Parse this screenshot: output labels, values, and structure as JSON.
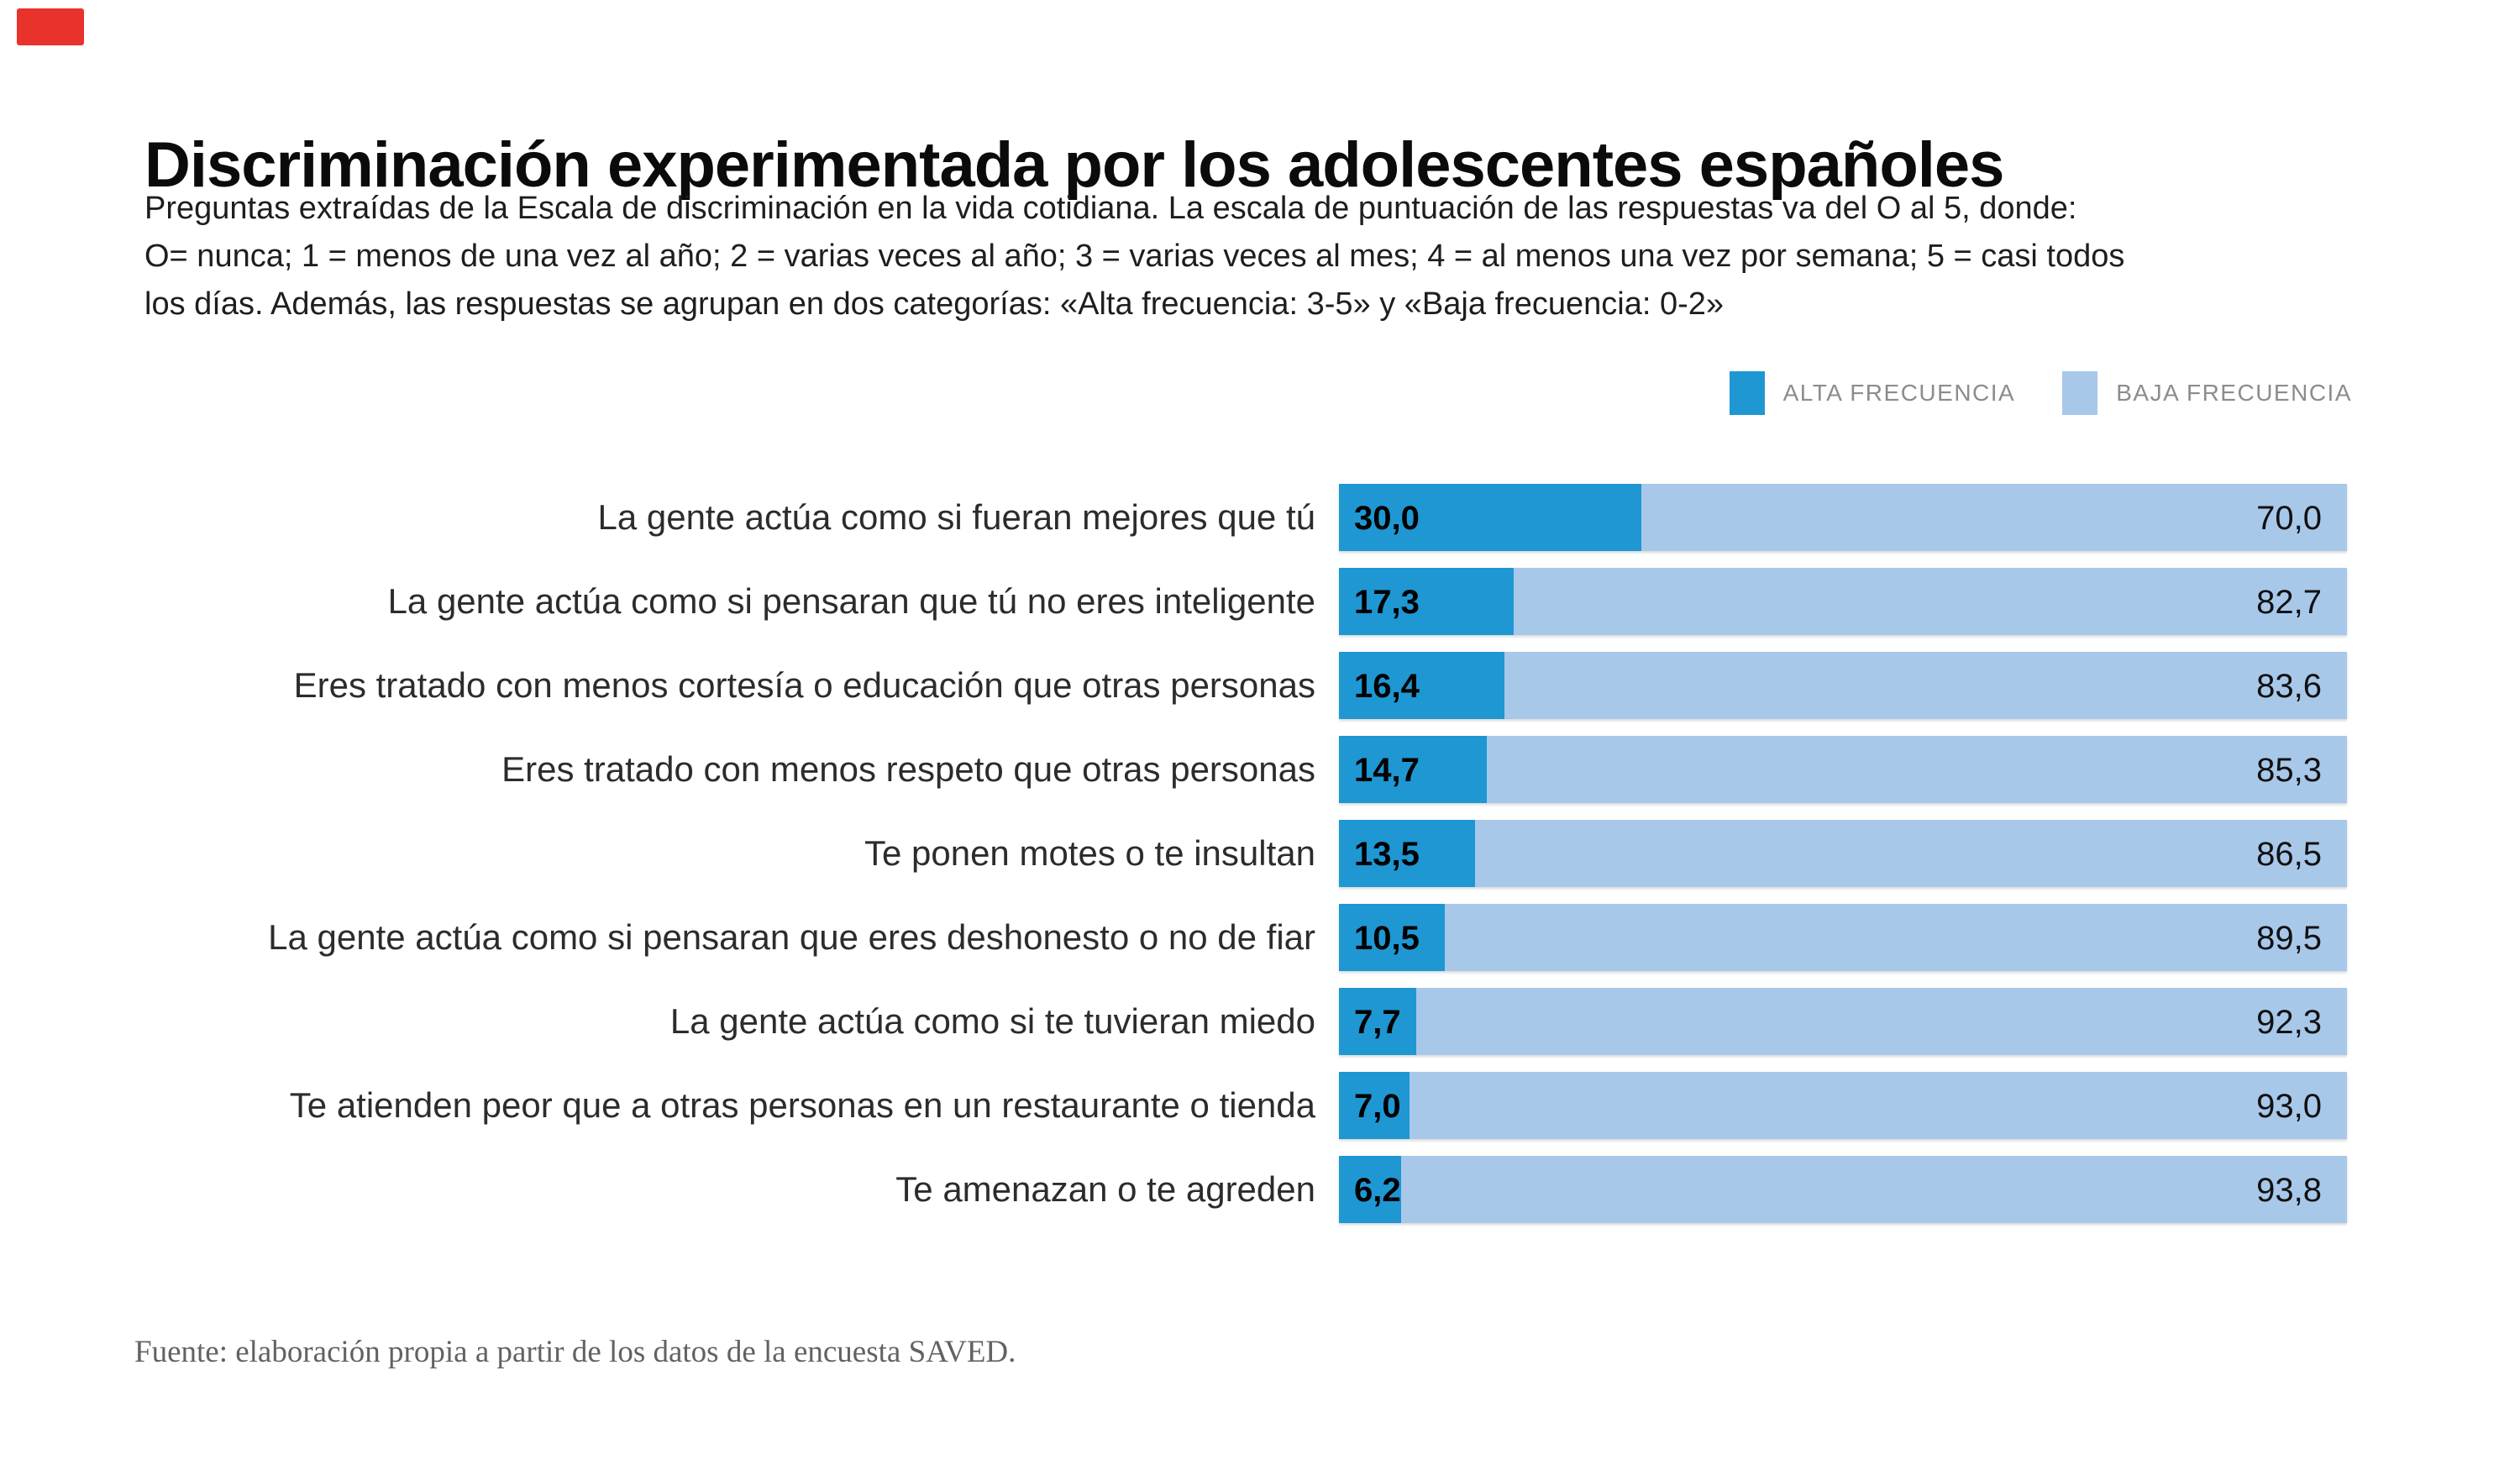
{
  "brand": {
    "logo_color": "#e8322b"
  },
  "header": {
    "title": "Discriminación experimentada por los adolescentes españoles",
    "subtitle_lines": [
      "Preguntas extraídas de la Escala de discriminación en la vida cotidiana. La escala de puntuación de las respuestas va del O al 5, donde:",
      "O= nunca; 1 = menos de una vez al año; 2 = varias veces al año; 3 = varias veces al mes; 4 = al menos una vez por semana; 5 = casi todos",
      "los días. Además, las respuestas se agrupan en dos categorías: «Alta frecuencia: 3-5» y «Baja frecuencia: 0-2»"
    ]
  },
  "legend": {
    "items": [
      {
        "label": "ALTA FRECUENCIA",
        "color": "#1e97d3"
      },
      {
        "label": "BAJA FRECUENCIA",
        "color": "#a8c8ea"
      }
    ]
  },
  "chart_data": {
    "type": "bar",
    "orientation": "horizontal",
    "stacked": true,
    "unit": "%",
    "xlim": [
      0,
      100
    ],
    "grid": false,
    "legend_position": "top-right",
    "value_labels": "inside",
    "categories": [
      "La gente actúa como si fueran mejores que tú",
      "La gente actúa como si pensaran que tú no eres inteligente",
      "Eres tratado con menos cortesía o educación que otras personas",
      "Eres tratado con menos respeto que otras personas",
      "Te ponen motes o te insultan",
      "La gente actúa como si pensaran que eres deshonesto o no de fiar",
      "La gente actúa como si te tuvieran miedo",
      "Te atienden peor que a otras personas en un restaurante o tienda",
      "Te amenazan o te agreden"
    ],
    "series": [
      {
        "name": "ALTA FRECUENCIA",
        "color": "#1e97d3",
        "values": [
          30.0,
          17.3,
          16.4,
          14.7,
          13.5,
          10.5,
          7.7,
          7.0,
          6.2
        ],
        "display_values": [
          "30,0",
          "17,3",
          "16,4",
          "14,7",
          "13,5",
          "10,5",
          "7,7",
          "7,0",
          "6,2"
        ]
      },
      {
        "name": "BAJA FRECUENCIA",
        "color": "#a8c8ea",
        "values": [
          70.0,
          82.7,
          83.6,
          85.3,
          86.5,
          89.5,
          92.3,
          93.0,
          93.8
        ],
        "display_values": [
          "70,0",
          "82,7",
          "83,6",
          "85,3",
          "86,5",
          "89,5",
          "92,3",
          "93,0",
          "93,8"
        ]
      }
    ]
  },
  "footer": {
    "source": "Fuente: elaboración propia a partir de los datos de la encuesta SAVED."
  }
}
